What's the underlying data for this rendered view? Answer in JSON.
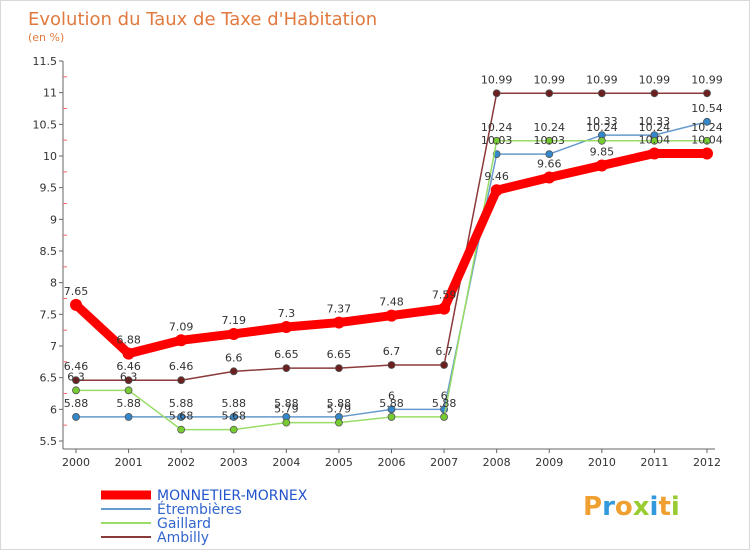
{
  "chart_data": {
    "type": "line",
    "title": "Evolution du Taux de Taxe d'Habitation",
    "subtitle": "(en %)",
    "xlabel": "",
    "ylabel": "",
    "x": [
      "2000",
      "2001",
      "2002",
      "2003",
      "2004",
      "2005",
      "2006",
      "2007",
      "2008",
      "2009",
      "2010",
      "2011",
      "2012"
    ],
    "ylim": [
      5.5,
      11.5
    ],
    "yticks": [
      "5.5",
      "6",
      "6.5",
      "7",
      "7.5",
      "8",
      "8.5",
      "9",
      "9.5",
      "10",
      "10.5",
      "11",
      "11.5"
    ],
    "grid": false,
    "legend_position": "bottom-left",
    "series": [
      {
        "name": "MONNETIER-MORNEX",
        "color": "#ff0000",
        "marker_color": "#c00000",
        "values": [
          7.65,
          6.88,
          7.09,
          7.19,
          7.3,
          7.37,
          7.48,
          7.59,
          9.46,
          9.66,
          9.85,
          10.04,
          10.04
        ],
        "labels": [
          "7.65",
          "6.88",
          "7.09",
          "7.19",
          "7.3",
          "7.37",
          "7.48",
          "7.59",
          "9.46",
          "9.66",
          "9.85",
          "10.04",
          "10.04"
        ]
      },
      {
        "name": "Étrembières",
        "color": "#6699cc",
        "marker_color": "#3388cc",
        "values": [
          5.88,
          5.88,
          5.88,
          5.88,
          5.88,
          5.88,
          6.0,
          6.0,
          10.03,
          10.03,
          10.33,
          10.33,
          10.54
        ],
        "labels": [
          "5.88",
          "5.88",
          "5.88",
          "5.88",
          "5.88",
          "5.88",
          "6",
          "6",
          "10.03",
          "10.03",
          "10.33",
          "10.33",
          "10.54"
        ]
      },
      {
        "name": "Gaillard",
        "color": "#99dd66",
        "marker_color": "#77cc33",
        "values": [
          6.3,
          6.3,
          5.68,
          5.68,
          5.79,
          5.79,
          5.88,
          5.88,
          10.24,
          10.24,
          10.24,
          10.24,
          10.24
        ],
        "labels": [
          "6.3",
          "6.3",
          "5.68",
          "5.68",
          "5.79",
          "5.79",
          "5.88",
          "5.88",
          "10.24",
          "10.24",
          "10.24",
          "10.24",
          "10.24"
        ]
      },
      {
        "name": "Ambilly",
        "color": "#8b3a3a",
        "marker_color": "#6b1f1f",
        "values": [
          6.46,
          6.46,
          6.46,
          6.6,
          6.65,
          6.65,
          6.7,
          6.7,
          10.99,
          10.99,
          10.99,
          10.99,
          10.99
        ],
        "labels": [
          "6.46",
          "6.46",
          "6.46",
          "6.6",
          "6.65",
          "6.65",
          "6.7",
          "6.7",
          "10.99",
          "10.99",
          "10.99",
          "10.99",
          "10.99"
        ]
      }
    ]
  },
  "branding": {
    "logo_text": "Proxiti",
    "logo_colors": [
      "#f0a030",
      "#3399dd",
      "#f0a030",
      "#99cc33",
      "#3399dd",
      "#f0a030",
      "#99cc33"
    ]
  }
}
